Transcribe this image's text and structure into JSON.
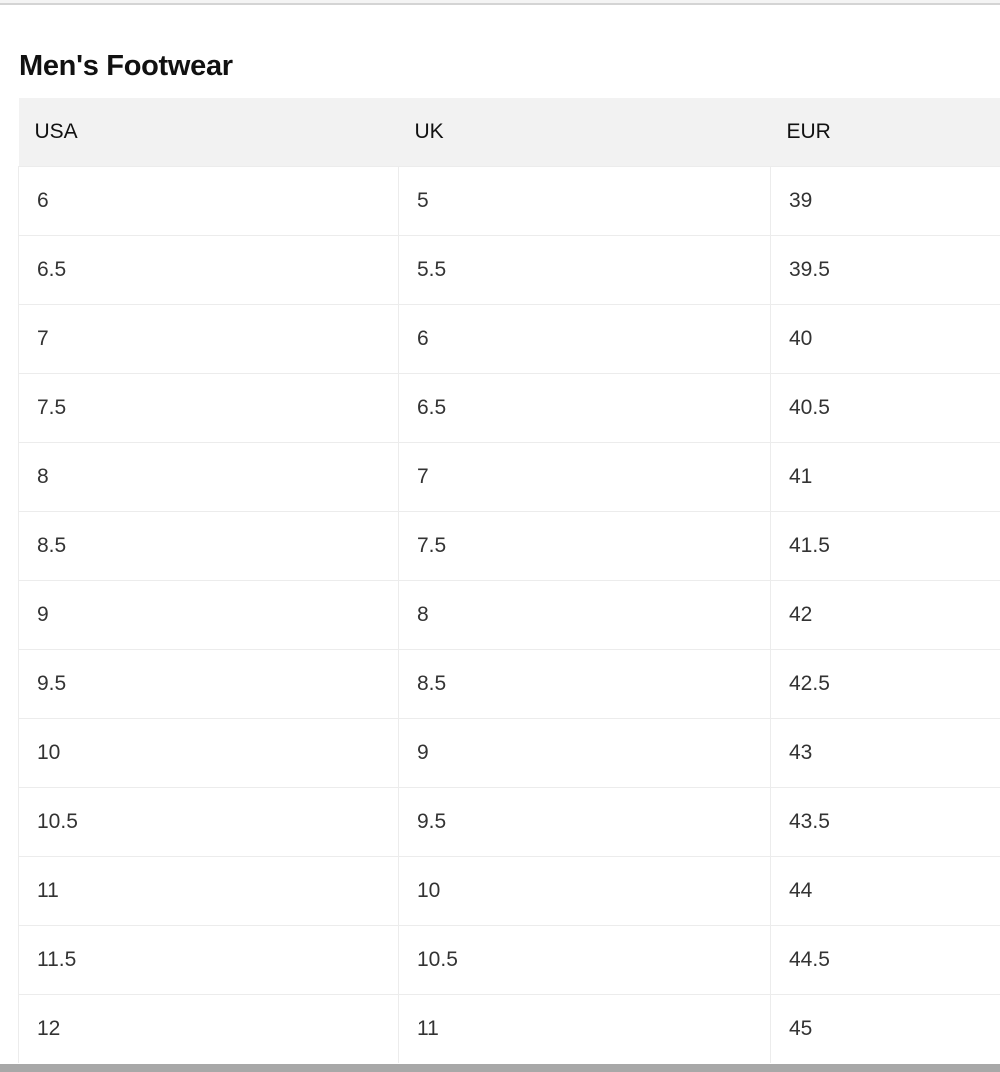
{
  "title": "Men's Footwear",
  "columns": [
    "USA",
    "UK",
    "EUR"
  ],
  "rows": [
    [
      "6",
      "5",
      "39"
    ],
    [
      "6.5",
      "5.5",
      "39.5"
    ],
    [
      "7",
      "6",
      "40"
    ],
    [
      "7.5",
      "6.5",
      "40.5"
    ],
    [
      "8",
      "7",
      "41"
    ],
    [
      "8.5",
      "7.5",
      "41.5"
    ],
    [
      "9",
      "8",
      "42"
    ],
    [
      "9.5",
      "8.5",
      "42.5"
    ],
    [
      "10",
      "9",
      "43"
    ],
    [
      "10.5",
      "9.5",
      "43.5"
    ],
    [
      "11",
      "10",
      "44"
    ],
    [
      "11.5",
      "10.5",
      "44.5"
    ],
    [
      "12",
      "11",
      "45"
    ]
  ]
}
